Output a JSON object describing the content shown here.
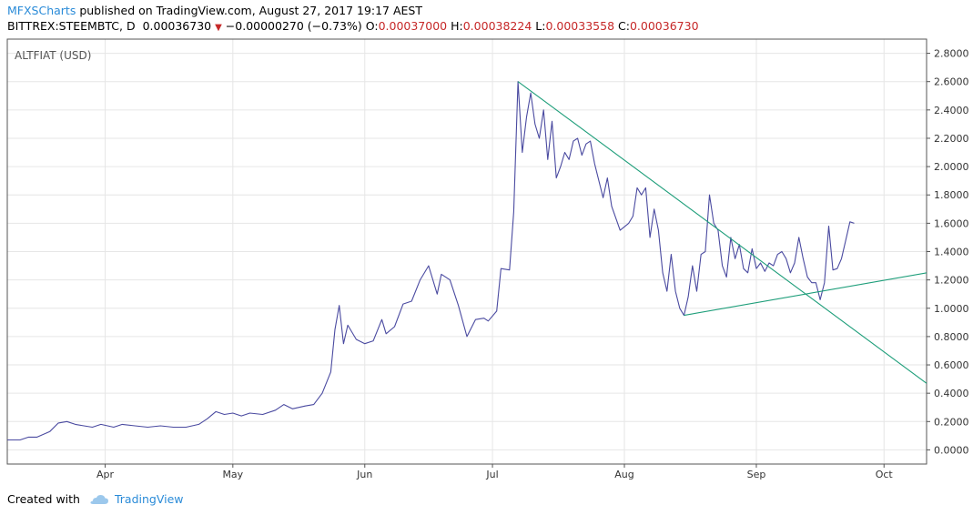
{
  "header": {
    "author": "MFXSCharts",
    "published_text": "published on TradingView.com, August 27, 2017 19:17 AEST",
    "symbol": "BITTREX:STEEMBTC, D",
    "price": "0.00036730",
    "change": "−0.00000270 (−0.73%)",
    "o_label": "O:",
    "o_value": "0.00037000",
    "h_label": "H:",
    "h_value": "0.00038224",
    "l_label": "L:",
    "l_value": "0.00033558",
    "c_label": "C:",
    "c_value": "0.00036730"
  },
  "footer": {
    "created_with": "Created with",
    "brand": "TradingView"
  },
  "colors": {
    "series": "#4a4aa0",
    "trendline": "#1e9e7a",
    "grid": "#e6e6e6",
    "accent": "#2a8bd8",
    "down": "#c62828"
  },
  "chart_data": {
    "type": "line",
    "title": "ALTFIAT (USD)",
    "xlabel": "",
    "ylabel": "",
    "ylim": [
      -0.1,
      2.9
    ],
    "y_ticks": [
      "2.8000",
      "2.6000",
      "2.4000",
      "2.2000",
      "2.0000",
      "1.8000",
      "1.6000",
      "1.4000",
      "1.2000",
      "1.0000",
      "0.8000",
      "0.6000",
      "0.4000",
      "0.2000",
      "0.0000"
    ],
    "x_ticks": [
      {
        "label": "Apr",
        "date": "2017-04-01"
      },
      {
        "label": "May",
        "date": "2017-05-01"
      },
      {
        "label": "Jun",
        "date": "2017-06-01"
      },
      {
        "label": "Jul",
        "date": "2017-07-01"
      },
      {
        "label": "Aug",
        "date": "2017-08-01"
      },
      {
        "label": "Sep",
        "date": "2017-09-01"
      },
      {
        "label": "Oct",
        "date": "2017-10-01"
      }
    ],
    "xlim": [
      "2017-03-09",
      "2017-10-11"
    ],
    "grid": true,
    "series": [
      {
        "values": [
          [
            "2017-03-09",
            0.07
          ],
          [
            "2017-03-12",
            0.07
          ],
          [
            "2017-03-14",
            0.09
          ],
          [
            "2017-03-16",
            0.09
          ],
          [
            "2017-03-19",
            0.13
          ],
          [
            "2017-03-21",
            0.19
          ],
          [
            "2017-03-23",
            0.2
          ],
          [
            "2017-03-25",
            0.18
          ],
          [
            "2017-03-27",
            0.17
          ],
          [
            "2017-03-29",
            0.16
          ],
          [
            "2017-03-31",
            0.18
          ],
          [
            "2017-04-03",
            0.16
          ],
          [
            "2017-04-05",
            0.18
          ],
          [
            "2017-04-08",
            0.17
          ],
          [
            "2017-04-11",
            0.16
          ],
          [
            "2017-04-14",
            0.17
          ],
          [
            "2017-04-17",
            0.16
          ],
          [
            "2017-04-20",
            0.16
          ],
          [
            "2017-04-23",
            0.18
          ],
          [
            "2017-04-25",
            0.22
          ],
          [
            "2017-04-27",
            0.27
          ],
          [
            "2017-04-29",
            0.25
          ],
          [
            "2017-05-01",
            0.26
          ],
          [
            "2017-05-03",
            0.24
          ],
          [
            "2017-05-05",
            0.26
          ],
          [
            "2017-05-08",
            0.25
          ],
          [
            "2017-05-11",
            0.28
          ],
          [
            "2017-05-13",
            0.32
          ],
          [
            "2017-05-15",
            0.29
          ],
          [
            "2017-05-18",
            0.31
          ],
          [
            "2017-05-20",
            0.32
          ],
          [
            "2017-05-22",
            0.4
          ],
          [
            "2017-05-24",
            0.55
          ],
          [
            "2017-05-25",
            0.85
          ],
          [
            "2017-05-26",
            1.02
          ],
          [
            "2017-05-27",
            0.75
          ],
          [
            "2017-05-28",
            0.88
          ],
          [
            "2017-05-30",
            0.78
          ],
          [
            "2017-06-01",
            0.75
          ],
          [
            "2017-06-03",
            0.77
          ],
          [
            "2017-06-05",
            0.92
          ],
          [
            "2017-06-06",
            0.82
          ],
          [
            "2017-06-08",
            0.87
          ],
          [
            "2017-06-10",
            1.03
          ],
          [
            "2017-06-12",
            1.05
          ],
          [
            "2017-06-14",
            1.2
          ],
          [
            "2017-06-16",
            1.3
          ],
          [
            "2017-06-18",
            1.1
          ],
          [
            "2017-06-19",
            1.24
          ],
          [
            "2017-06-21",
            1.2
          ],
          [
            "2017-06-23",
            1.02
          ],
          [
            "2017-06-25",
            0.8
          ],
          [
            "2017-06-27",
            0.92
          ],
          [
            "2017-06-29",
            0.93
          ],
          [
            "2017-06-30",
            0.91
          ],
          [
            "2017-07-02",
            0.98
          ],
          [
            "2017-07-03",
            1.28
          ],
          [
            "2017-07-05",
            1.27
          ],
          [
            "2017-07-06",
            1.68
          ],
          [
            "2017-07-07",
            2.6
          ],
          [
            "2017-07-08",
            2.1
          ],
          [
            "2017-07-09",
            2.35
          ],
          [
            "2017-07-10",
            2.52
          ],
          [
            "2017-07-11",
            2.3
          ],
          [
            "2017-07-12",
            2.2
          ],
          [
            "2017-07-13",
            2.4
          ],
          [
            "2017-07-14",
            2.05
          ],
          [
            "2017-07-15",
            2.32
          ],
          [
            "2017-07-16",
            1.92
          ],
          [
            "2017-07-17",
            2.0
          ],
          [
            "2017-07-18",
            2.1
          ],
          [
            "2017-07-19",
            2.05
          ],
          [
            "2017-07-20",
            2.18
          ],
          [
            "2017-07-21",
            2.2
          ],
          [
            "2017-07-22",
            2.08
          ],
          [
            "2017-07-23",
            2.16
          ],
          [
            "2017-07-24",
            2.18
          ],
          [
            "2017-07-25",
            2.02
          ],
          [
            "2017-07-27",
            1.78
          ],
          [
            "2017-07-28",
            1.92
          ],
          [
            "2017-07-29",
            1.72
          ],
          [
            "2017-07-31",
            1.55
          ],
          [
            "2017-08-02",
            1.6
          ],
          [
            "2017-08-03",
            1.65
          ],
          [
            "2017-08-04",
            1.85
          ],
          [
            "2017-08-05",
            1.8
          ],
          [
            "2017-08-06",
            1.85
          ],
          [
            "2017-08-07",
            1.5
          ],
          [
            "2017-08-08",
            1.7
          ],
          [
            "2017-08-09",
            1.55
          ],
          [
            "2017-08-10",
            1.25
          ],
          [
            "2017-08-11",
            1.12
          ],
          [
            "2017-08-12",
            1.38
          ],
          [
            "2017-08-13",
            1.12
          ],
          [
            "2017-08-14",
            1.0
          ],
          [
            "2017-08-15",
            0.95
          ],
          [
            "2017-08-16",
            1.08
          ],
          [
            "2017-08-17",
            1.3
          ],
          [
            "2017-08-18",
            1.12
          ],
          [
            "2017-08-19",
            1.38
          ],
          [
            "2017-08-20",
            1.4
          ],
          [
            "2017-08-21",
            1.8
          ],
          [
            "2017-08-22",
            1.6
          ],
          [
            "2017-08-23",
            1.55
          ],
          [
            "2017-08-24",
            1.3
          ],
          [
            "2017-08-25",
            1.22
          ],
          [
            "2017-08-26",
            1.5
          ],
          [
            "2017-08-27",
            1.35
          ],
          [
            "2017-08-28",
            1.45
          ],
          [
            "2017-08-29",
            1.28
          ],
          [
            "2017-08-30",
            1.25
          ],
          [
            "2017-08-31",
            1.42
          ],
          [
            "2017-09-01",
            1.28
          ],
          [
            "2017-09-02",
            1.32
          ],
          [
            "2017-09-03",
            1.26
          ],
          [
            "2017-09-04",
            1.32
          ],
          [
            "2017-09-05",
            1.3
          ],
          [
            "2017-09-06",
            1.38
          ],
          [
            "2017-09-07",
            1.4
          ],
          [
            "2017-09-08",
            1.35
          ],
          [
            "2017-09-09",
            1.25
          ],
          [
            "2017-09-10",
            1.32
          ],
          [
            "2017-09-11",
            1.5
          ],
          [
            "2017-09-12",
            1.35
          ],
          [
            "2017-09-13",
            1.22
          ],
          [
            "2017-09-14",
            1.18
          ],
          [
            "2017-09-15",
            1.18
          ],
          [
            "2017-09-16",
            1.06
          ],
          [
            "2017-09-17",
            1.18
          ],
          [
            "2017-09-18",
            1.58
          ],
          [
            "2017-09-19",
            1.27
          ],
          [
            "2017-09-20",
            1.28
          ],
          [
            "2017-09-21",
            1.35
          ],
          [
            "2017-09-22",
            1.48
          ],
          [
            "2017-09-23",
            1.61
          ],
          [
            "2017-09-24",
            1.6
          ]
        ]
      }
    ],
    "trendlines": [
      {
        "from": [
          "2017-07-07",
          2.6
        ],
        "to": [
          "2017-10-11",
          0.47
        ]
      },
      {
        "from": [
          "2017-08-15",
          0.95
        ],
        "to": [
          "2017-10-11",
          1.25
        ]
      }
    ]
  }
}
